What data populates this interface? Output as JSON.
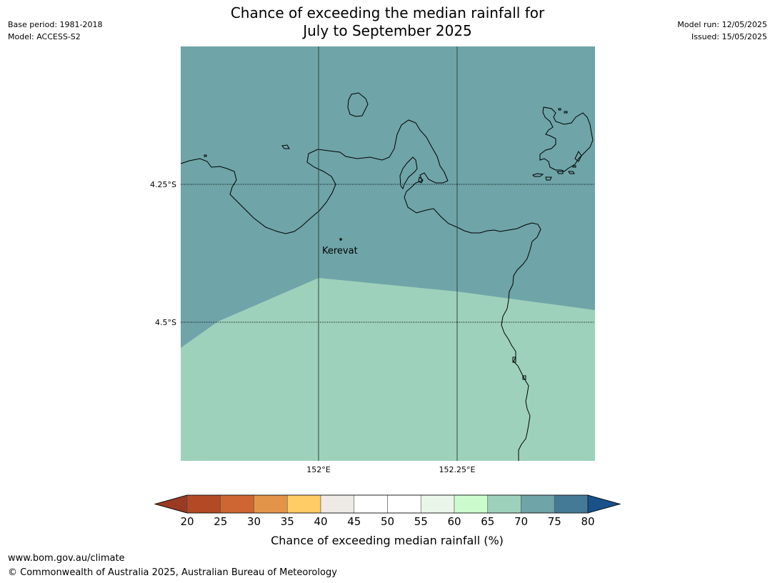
{
  "header": {
    "title_line1": "Chance of exceeding the median rainfall for",
    "title_line2": "July to September 2025",
    "base_period": "Base period: 1981-2018",
    "model": "Model: ACCESS-S2",
    "model_run": "Model run: 12/05/2025",
    "issued": "Issued: 15/05/2025"
  },
  "map": {
    "lon_labels": [
      "152°E",
      "152.25°E"
    ],
    "lat_labels": [
      "4.25°S",
      "4.5°S"
    ],
    "place_label": "Kerevat",
    "colors": {
      "upper_region": "#6fa4a8",
      "lower_region": "#9ed1bb"
    }
  },
  "colorbar": {
    "ticks": [
      "20",
      "25",
      "30",
      "35",
      "40",
      "45",
      "50",
      "55",
      "60",
      "65",
      "70",
      "75",
      "80"
    ],
    "colors": [
      "#9b3a22",
      "#b34a26",
      "#cd6633",
      "#e29548",
      "#ffcc66",
      "#eeeae6",
      "#ffffff",
      "#ffffff",
      "#eaf6ea",
      "#ccfcce",
      "#9ed1bb",
      "#6fa4a8",
      "#457a97",
      "#1a5189"
    ],
    "label": "Chance of exceeding median rainfall (%)"
  },
  "footer": {
    "url": "www.bom.gov.au/climate",
    "copyright": "© Commonwealth of Australia 2025, Australian Bureau of Meteorology"
  }
}
